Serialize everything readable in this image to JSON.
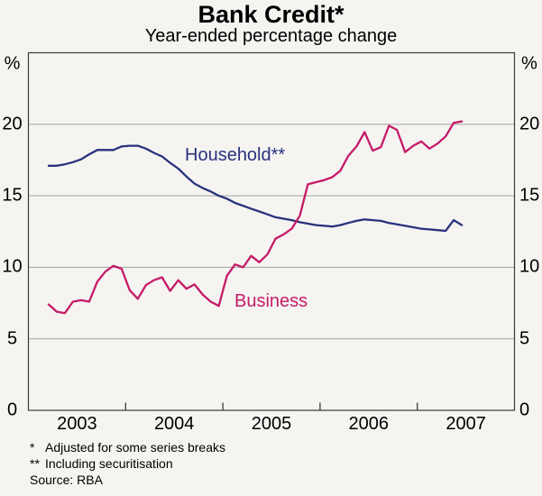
{
  "header": {
    "title": "Bank Credit*",
    "subtitle": "Year-ended percentage change"
  },
  "axes": {
    "unit_left": "%",
    "unit_right": "%"
  },
  "footnotes": [
    {
      "marker": "*",
      "text": "Adjusted for some series breaks"
    },
    {
      "marker": "**",
      "text": "Including securitisation"
    }
  ],
  "source": "Source: RBA",
  "chart_data": {
    "type": "line",
    "title": "Bank Credit*",
    "subtitle": "Year-ended percentage change",
    "unit": "%",
    "frequency": "monthly",
    "start_month": "2003-03",
    "end_month": "2007-06",
    "x_range_years": [
      2003,
      2008
    ],
    "x_tick_labels": [
      "2003",
      "2004",
      "2005",
      "2006",
      "2007"
    ],
    "yticks": [
      0,
      5,
      10,
      15,
      20
    ],
    "ylim": [
      0,
      25
    ],
    "grid": "horizontal",
    "legend_position": "labels-on-chart",
    "months": [
      "2003-03",
      "2003-04",
      "2003-05",
      "2003-06",
      "2003-07",
      "2003-08",
      "2003-09",
      "2003-10",
      "2003-11",
      "2003-12",
      "2004-01",
      "2004-02",
      "2004-03",
      "2004-04",
      "2004-05",
      "2004-06",
      "2004-07",
      "2004-08",
      "2004-09",
      "2004-10",
      "2004-11",
      "2004-12",
      "2005-01",
      "2005-02",
      "2005-03",
      "2005-04",
      "2005-05",
      "2005-06",
      "2005-07",
      "2005-08",
      "2005-09",
      "2005-10",
      "2005-11",
      "2005-12",
      "2006-01",
      "2006-02",
      "2006-03",
      "2006-04",
      "2006-05",
      "2006-06",
      "2006-07",
      "2006-08",
      "2006-09",
      "2006-10",
      "2006-11",
      "2006-12",
      "2007-01",
      "2007-02",
      "2007-03",
      "2007-04",
      "2007-05",
      "2007-06"
    ],
    "series": [
      {
        "name": "Household**",
        "color": "#28327C",
        "values": [
          17.1,
          17.1,
          17.2,
          17.35,
          17.55,
          17.9,
          18.2,
          18.2,
          18.2,
          18.45,
          18.5,
          18.5,
          18.3,
          18.0,
          17.75,
          17.3,
          16.9,
          16.35,
          15.85,
          15.55,
          15.3,
          15.0,
          14.8,
          14.5,
          14.3,
          14.1,
          13.9,
          13.7,
          13.5,
          13.4,
          13.3,
          13.15,
          13.05,
          12.95,
          12.9,
          12.85,
          12.95,
          13.1,
          13.25,
          13.35,
          13.3,
          13.25,
          13.1,
          13.0,
          12.9,
          12.8,
          12.7,
          12.65,
          12.6,
          12.55,
          13.3,
          12.95
        ]
      },
      {
        "name": "Business",
        "color": "#C51A67",
        "values": [
          7.4,
          6.9,
          6.8,
          7.6,
          7.7,
          7.6,
          9.0,
          9.7,
          10.1,
          9.9,
          8.4,
          7.8,
          8.75,
          9.1,
          9.3,
          8.35,
          9.1,
          8.5,
          8.8,
          8.1,
          7.6,
          7.3,
          9.4,
          10.2,
          10.0,
          10.8,
          10.35,
          10.9,
          12.0,
          12.3,
          12.7,
          13.6,
          15.8,
          15.95,
          16.1,
          16.3,
          16.75,
          17.8,
          18.45,
          19.45,
          18.15,
          18.4,
          19.9,
          19.6,
          18.05,
          18.5,
          18.8,
          18.3,
          18.65,
          19.15,
          20.1,
          20.2
        ]
      }
    ]
  }
}
